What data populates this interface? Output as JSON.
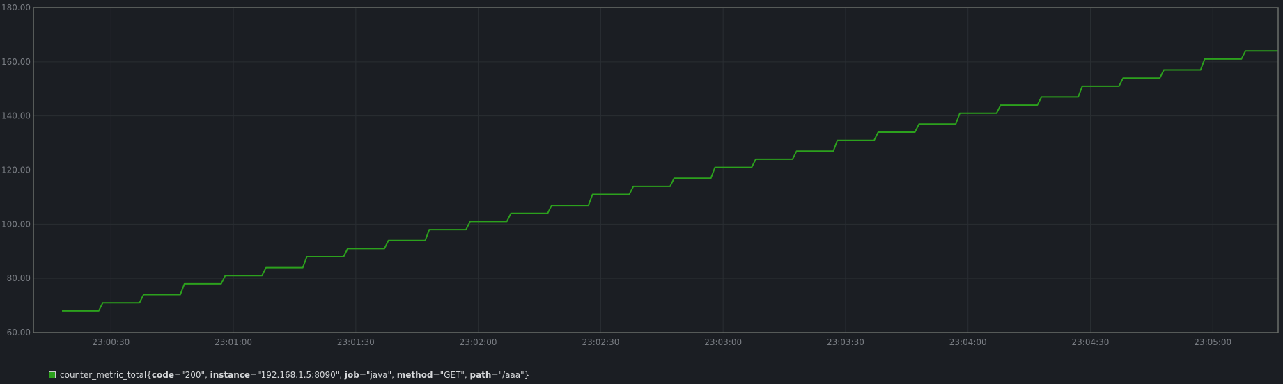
{
  "chart_data": {
    "type": "line",
    "xlabel": "",
    "ylabel": "",
    "ylim": [
      60,
      180
    ],
    "y_ticks": [
      "60.00",
      "80.00",
      "100.00",
      "120.00",
      "140.00",
      "160.00",
      "180.00"
    ],
    "x_ticks": [
      "23:00:30",
      "23:01:00",
      "23:01:30",
      "23:02:00",
      "23:02:30",
      "23:03:00",
      "23:03:30",
      "23:04:00",
      "23:04:30",
      "23:05:00"
    ],
    "xlim": [
      "23:00:11",
      "23:05:16"
    ],
    "grid": true,
    "legend_position": "bottom-left",
    "line_color": "#2ca11d",
    "series": [
      {
        "name": "counter_metric_total{code=\"200\", instance=\"192.168.1.5:8090\", job=\"java\", method=\"GET\", path=\"/aaa\"}",
        "x": [
          "23:00:18",
          "23:00:27",
          "23:00:28",
          "23:00:37",
          "23:00:38",
          "23:00:47",
          "23:00:48",
          "23:00:57",
          "23:00:58",
          "23:01:07",
          "23:01:08",
          "23:01:17",
          "23:01:18",
          "23:01:27",
          "23:01:28",
          "23:01:37",
          "23:01:38",
          "23:01:47",
          "23:01:48",
          "23:01:57",
          "23:01:58",
          "23:02:07",
          "23:02:08",
          "23:02:17",
          "23:02:18",
          "23:02:27",
          "23:02:28",
          "23:02:37",
          "23:02:38",
          "23:02:47",
          "23:02:48",
          "23:02:57",
          "23:02:58",
          "23:03:07",
          "23:03:08",
          "23:03:17",
          "23:03:18",
          "23:03:27",
          "23:03:28",
          "23:03:37",
          "23:03:38",
          "23:03:47",
          "23:03:48",
          "23:03:57",
          "23:03:58",
          "23:04:07",
          "23:04:08",
          "23:04:17",
          "23:04:18",
          "23:04:27",
          "23:04:28",
          "23:04:37",
          "23:04:38",
          "23:04:47",
          "23:04:48",
          "23:04:57",
          "23:04:58",
          "23:05:07",
          "23:05:08",
          "23:05:16"
        ],
        "values": [
          68,
          68,
          71,
          71,
          74,
          74,
          78,
          78,
          81,
          81,
          84,
          84,
          88,
          88,
          91,
          91,
          94,
          94,
          98,
          98,
          101,
          101,
          104,
          104,
          107,
          107,
          111,
          111,
          114,
          114,
          117,
          117,
          121,
          121,
          124,
          124,
          127,
          127,
          131,
          131,
          134,
          134,
          137,
          137,
          141,
          141,
          144,
          144,
          147,
          147,
          151,
          151,
          154,
          154,
          157,
          157,
          161,
          161,
          164,
          164
        ]
      }
    ]
  },
  "legend": {
    "metric": "counter_metric_total",
    "open": "{",
    "close": "}",
    "labels": [
      {
        "key": "code",
        "value": "=\"200\"",
        "sep": ", "
      },
      {
        "key": "instance",
        "value": "=\"192.168.1.5:8090\"",
        "sep": ", "
      },
      {
        "key": "job",
        "value": "=\"java\"",
        "sep": ", "
      },
      {
        "key": "method",
        "value": "=\"GET\"",
        "sep": ", "
      },
      {
        "key": "path",
        "value": "=\"/aaa\"",
        "sep": ""
      }
    ]
  }
}
